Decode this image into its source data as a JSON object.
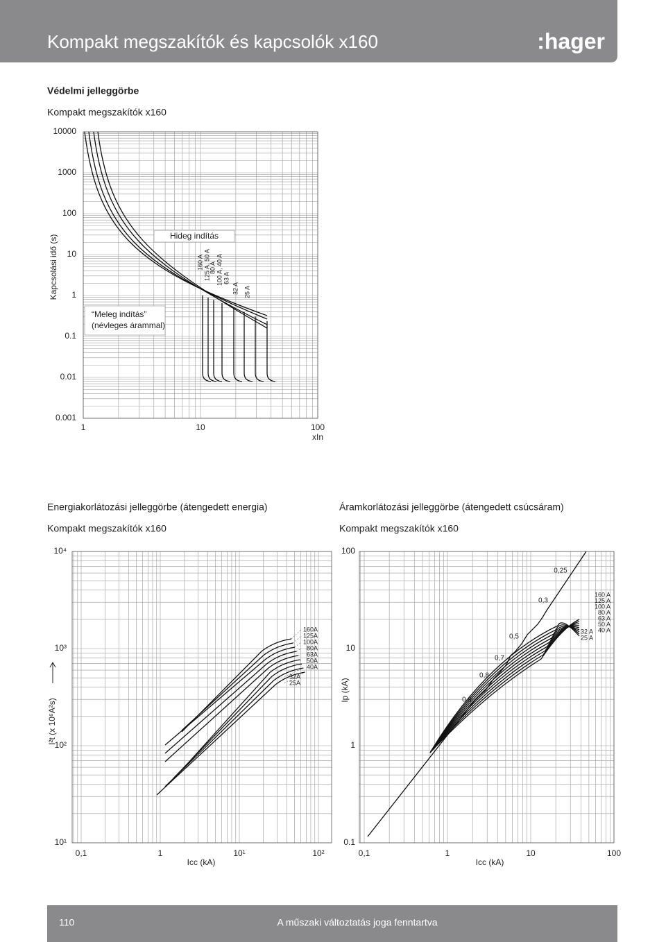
{
  "header": {
    "title": "Kompakt megszakítók és kapcsolók x160",
    "logo": ":hager"
  },
  "protection": {
    "heading": "Védelmi jelleggörbe",
    "subheading": "Kompakt megszakítók x160",
    "yticks": [
      "10000",
      "1000",
      "100",
      "10",
      "1",
      "0.1",
      "0.01",
      "0.001"
    ],
    "xticks": [
      "1",
      "10",
      "100"
    ],
    "xlabel": "xIn",
    "ylabel": "Kapcsolási idő (s)",
    "cold_start": "Hideg indítás",
    "warm_start": [
      "“Meleg indítás”",
      "(névleges árammal)"
    ],
    "curve_labels": [
      "160 A",
      "125 A, 50 A",
      "80 A",
      "100 A, 40 A",
      "63 A",
      "32 A",
      "25 A"
    ]
  },
  "energy": {
    "heading": "Energiakorlátozási jelleggörbe (átengedett energia)",
    "subheading": "Kompakt megszakítók x160",
    "yticks": [
      "10⁴",
      "10³",
      "10²",
      "10¹"
    ],
    "xticks": [
      "0,1",
      "1",
      "10¹",
      "10²"
    ],
    "xlabel": "Icc (kA)",
    "ylabel": "I²t (x 10⁶A²s)",
    "curve_labels": [
      "160A",
      "125A",
      "100A",
      "80A",
      "63A",
      "50A",
      "40A",
      "32A",
      "25A"
    ]
  },
  "peak": {
    "heading": "Áramkorlátozási jelleggörbe (átengedett csúcsáram)",
    "subheading": "Kompakt megszakítók x160",
    "yticks": [
      "100",
      "10",
      "1",
      "0.1"
    ],
    "xticks": [
      "0,1",
      "1",
      "10",
      "100"
    ],
    "xlabel": "Icc (kA)",
    "ylabel": "Ip (kA)",
    "cos_labels": [
      "0,25",
      "0,3",
      "0,5",
      "0,7",
      "0,8",
      "0,9"
    ],
    "curve_labels": [
      "160 A",
      "125 A",
      "100 A",
      "80 A",
      "63 A",
      "50 A",
      "40 A",
      "32 A",
      "25 A"
    ]
  },
  "footer": {
    "page": "110",
    "note": "A műszaki változtatás joga fenntartva"
  }
}
